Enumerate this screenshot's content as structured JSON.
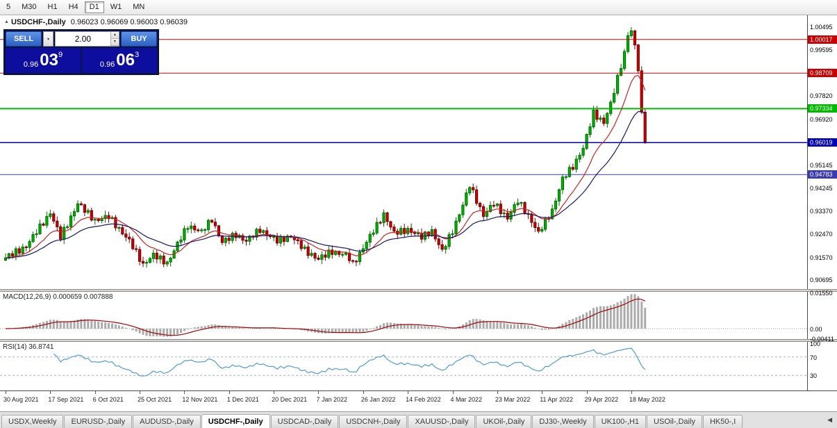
{
  "timeframe_bar": {
    "items": [
      "5",
      "M30",
      "H1",
      "H4",
      "D1",
      "W1",
      "MN"
    ],
    "active": "D1"
  },
  "chart": {
    "marker": "▲",
    "symbol": "USDCHF-,Daily",
    "ohlc_text": "0.96023 0.96069 0.96003 0.96039",
    "trade_panel": {
      "sell_label": "SELL",
      "buy_label": "BUY",
      "volume": "2.00",
      "dropdown_icon": "▾",
      "spinner_up": "▴",
      "spinner_down": "▾",
      "bid": {
        "big": "0.96",
        "mid": "03",
        "sup": "9"
      },
      "ask": {
        "big": "0.96",
        "mid": "06",
        "sup": "3"
      }
    }
  },
  "chart_data": {
    "type": "candlestick",
    "symbol": "USDCHF",
    "timeframe": "Daily",
    "last_ohlc": {
      "open": 0.96023,
      "high": 0.96069,
      "low": 0.96003,
      "close": 0.96039
    },
    "period_high": 1.00495,
    "price_min": 0.9035,
    "price_max": 1.0095,
    "closes": [
      0.9155,
      0.9172,
      0.9163,
      0.9191,
      0.9174,
      0.9198,
      0.9196,
      0.9219,
      0.9246,
      0.9249,
      0.9287,
      0.9282,
      0.9316,
      0.9326,
      0.9298,
      0.9276,
      0.9228,
      0.9274,
      0.9276,
      0.9318,
      0.9335,
      0.9365,
      0.9361,
      0.9332,
      0.9339,
      0.9302,
      0.9305,
      0.93,
      0.9308,
      0.932,
      0.9308,
      0.9312,
      0.9272,
      0.9273,
      0.9248,
      0.9236,
      0.9229,
      0.9191,
      0.9188,
      0.9142,
      0.9135,
      0.9138,
      0.9153,
      0.9174,
      0.9151,
      0.9163,
      0.9132,
      0.914,
      0.9155,
      0.9183,
      0.9217,
      0.9225,
      0.9269,
      0.9269,
      0.9279,
      0.9264,
      0.9261,
      0.9264,
      0.9265,
      0.9301,
      0.9294,
      0.928,
      0.9241,
      0.9215,
      0.9232,
      0.9223,
      0.9251,
      0.9234,
      0.9242,
      0.9224,
      0.922,
      0.924,
      0.9236,
      0.9267,
      0.9254,
      0.9261,
      0.9243,
      0.9238,
      0.9238,
      0.9213,
      0.9238,
      0.9219,
      0.924,
      0.9236,
      0.9226,
      0.9222,
      0.9192,
      0.9198,
      0.9165,
      0.9173,
      0.9155,
      0.915,
      0.9167,
      0.9158,
      0.9186,
      0.9169,
      0.9181,
      0.9169,
      0.9169,
      0.9174,
      0.9145,
      0.9143,
      0.9141,
      0.9178,
      0.9191,
      0.9216,
      0.9247,
      0.9252,
      0.9293,
      0.9292,
      0.933,
      0.9296,
      0.9275,
      0.9259,
      0.9247,
      0.927,
      0.925,
      0.927,
      0.9254,
      0.925,
      0.9251,
      0.9228,
      0.9256,
      0.9241,
      0.9265,
      0.9229,
      0.9207,
      0.9189,
      0.92,
      0.9246,
      0.9249,
      0.9298,
      0.9323,
      0.936,
      0.9407,
      0.9428,
      0.9419,
      0.9367,
      0.9354,
      0.9316,
      0.9335,
      0.9359,
      0.9358,
      0.9364,
      0.9327,
      0.9329,
      0.9306,
      0.9332,
      0.9362,
      0.9368,
      0.937,
      0.9327,
      0.9325,
      0.9293,
      0.9273,
      0.9259,
      0.9266,
      0.9308,
      0.9307,
      0.9345,
      0.9376,
      0.942,
      0.9469,
      0.947,
      0.9506,
      0.9499,
      0.9538,
      0.9553,
      0.958,
      0.9634,
      0.9663,
      0.9728,
      0.9692,
      0.9697,
      0.9676,
      0.9715,
      0.9759,
      0.9793,
      0.9863,
      0.9889,
      0.9955,
      1.0016,
      1.0035,
      0.998,
      0.988,
      0.972,
      0.96039
    ],
    "x_labels": [
      "30 Aug 2021",
      "17 Sep 2021",
      "6 Oct 2021",
      "25 Oct 2021",
      "12 Nov 2021",
      "1 Dec 2021",
      "20 Dec 2021",
      "7 Jan 2022",
      "26 Jan 2022",
      "14 Feb 2022",
      "4 Mar 2022",
      "23 Mar 2022",
      "11 Apr 2022",
      "29 Apr 2022",
      "18 May 2022"
    ],
    "x_label_indices": [
      0,
      13,
      26,
      39,
      52,
      65,
      78,
      91,
      104,
      117,
      130,
      143,
      156,
      169,
      182
    ],
    "y_axis_labels": [
      "1.00495",
      "0.99595",
      "0.97820",
      "0.96920",
      "0.95145",
      "0.94245",
      "0.93370",
      "0.92470",
      "0.91570",
      "0.90695"
    ],
    "levels": [
      {
        "price": 1.00017,
        "label": "1.00017",
        "color": "#cc0000",
        "width": 1
      },
      {
        "price": 0.98709,
        "label": "0.98709",
        "color": "#cc0000",
        "width": 1
      },
      {
        "price": 0.97334,
        "label": "0.97334",
        "color": "#00bb00",
        "width": 2
      },
      {
        "price": 0.96019,
        "label": "0.96019",
        "color": "#0000bb",
        "width": 1.5
      },
      {
        "price": 0.94783,
        "label": "0.94783",
        "color": "#3a3ab8",
        "width": 1
      }
    ],
    "moving_averages": [
      {
        "period": 12,
        "color": "#cc2222"
      },
      {
        "period": 26,
        "color": "#16166b"
      }
    ],
    "colors": {
      "up": "#007000",
      "up_fill": "#00b300",
      "down": "#7a0000",
      "down_fill": "#cc0000"
    },
    "indicators": {
      "macd": {
        "label": "MACD(12,26,9) 0.000659 0.007888",
        "fast": 12,
        "slow": 26,
        "signal_period": 9,
        "axis_labels": [
          "0.01550",
          "0.00",
          "-0.00411"
        ],
        "histogram_color": "#ababab",
        "signal_color": "#aa0000"
      },
      "rsi": {
        "label": "RSI(14) 36.8741",
        "period": 14,
        "value": 36.8741,
        "axis_labels": [
          "100",
          "70",
          "30"
        ],
        "upper_level": 70,
        "lower_level": 30,
        "line_color": "#4f9bd4"
      }
    }
  },
  "tabs": {
    "items": [
      "USDX,Weekly",
      "EURUSD-,Daily",
      "AUDUSD-,Daily",
      "USDCHF-,Daily",
      "USDCAD-,Daily",
      "USDCNH-,Daily",
      "XAUUSD-,Daily",
      "UKOil-,Daily",
      "DJ30-,Weekly",
      "UK100-,H1",
      "USOil-,Daily",
      "HK50-,I"
    ],
    "active_index": 3,
    "scroll_left_icon": "◀"
  }
}
